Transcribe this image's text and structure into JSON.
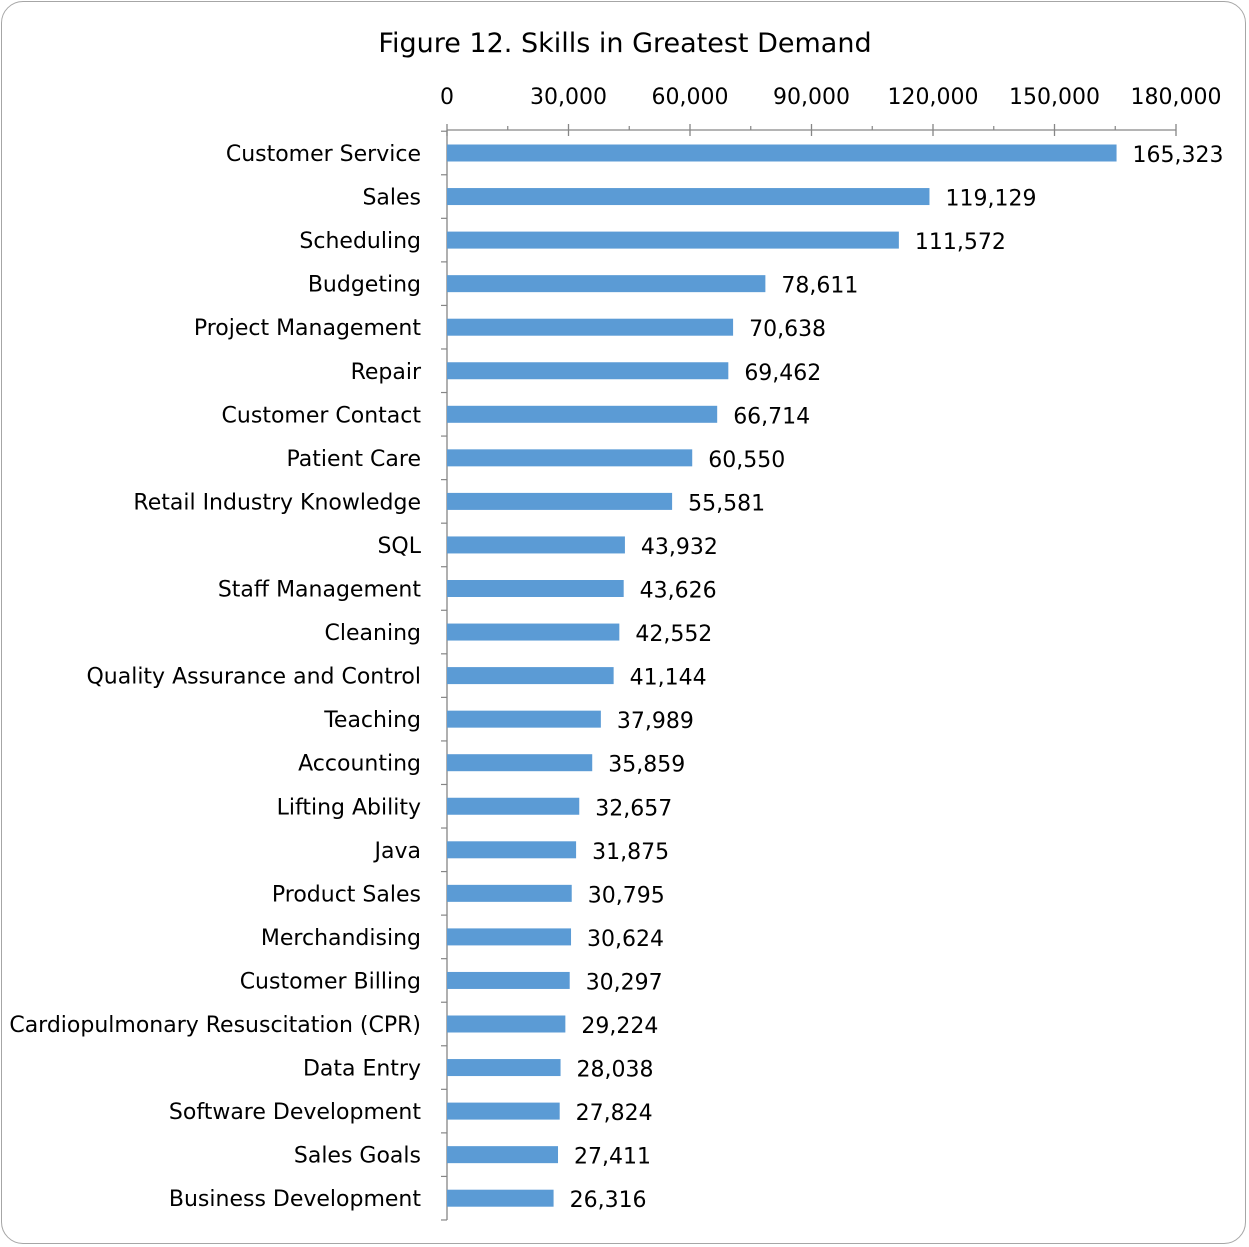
{
  "chart_data": {
    "type": "bar",
    "orientation": "horizontal",
    "title": "Figure 12. Skills in Greatest Demand",
    "xlabel": "",
    "ylabel": "",
    "xlim": [
      0,
      180000
    ],
    "x_ticks": [
      0,
      30000,
      60000,
      90000,
      120000,
      150000,
      180000
    ],
    "x_tick_labels": [
      "0",
      "30,000",
      "60,000",
      "90,000",
      "120,000",
      "150,000",
      "180,000"
    ],
    "axis_position": "top",
    "grid": false,
    "legend": "none",
    "bar_color": "#5b9bd5",
    "categories": [
      "Customer Service",
      "Sales",
      "Scheduling",
      "Budgeting",
      "Project Management",
      "Repair",
      "Customer Contact",
      "Patient Care",
      "Retail Industry Knowledge",
      "SQL",
      "Staff Management",
      "Cleaning",
      "Quality Assurance and Control",
      "Teaching",
      "Accounting",
      "Lifting Ability",
      "Java",
      "Product Sales",
      "Merchandising",
      "Customer Billing",
      "Cardiopulmonary Resuscitation (CPR)",
      "Data Entry",
      "Software Development",
      "Sales Goals",
      "Business Development"
    ],
    "values": [
      165323,
      119129,
      111572,
      78611,
      70638,
      69462,
      66714,
      60550,
      55581,
      43932,
      43626,
      42552,
      41144,
      37989,
      35859,
      32657,
      31875,
      30795,
      30624,
      30297,
      29224,
      28038,
      27824,
      27411,
      26316
    ],
    "value_labels": [
      "165,323",
      "119,129",
      "111,572",
      "78,611",
      "70,638",
      "69,462",
      "66,714",
      "60,550",
      "55,581",
      "43,932",
      "43,626",
      "42,552",
      "41,144",
      "37,989",
      "35,859",
      "32,657",
      "31,875",
      "30,795",
      "30,624",
      "30,297",
      "29,224",
      "28,038",
      "27,824",
      "27,411",
      "26,316"
    ]
  }
}
